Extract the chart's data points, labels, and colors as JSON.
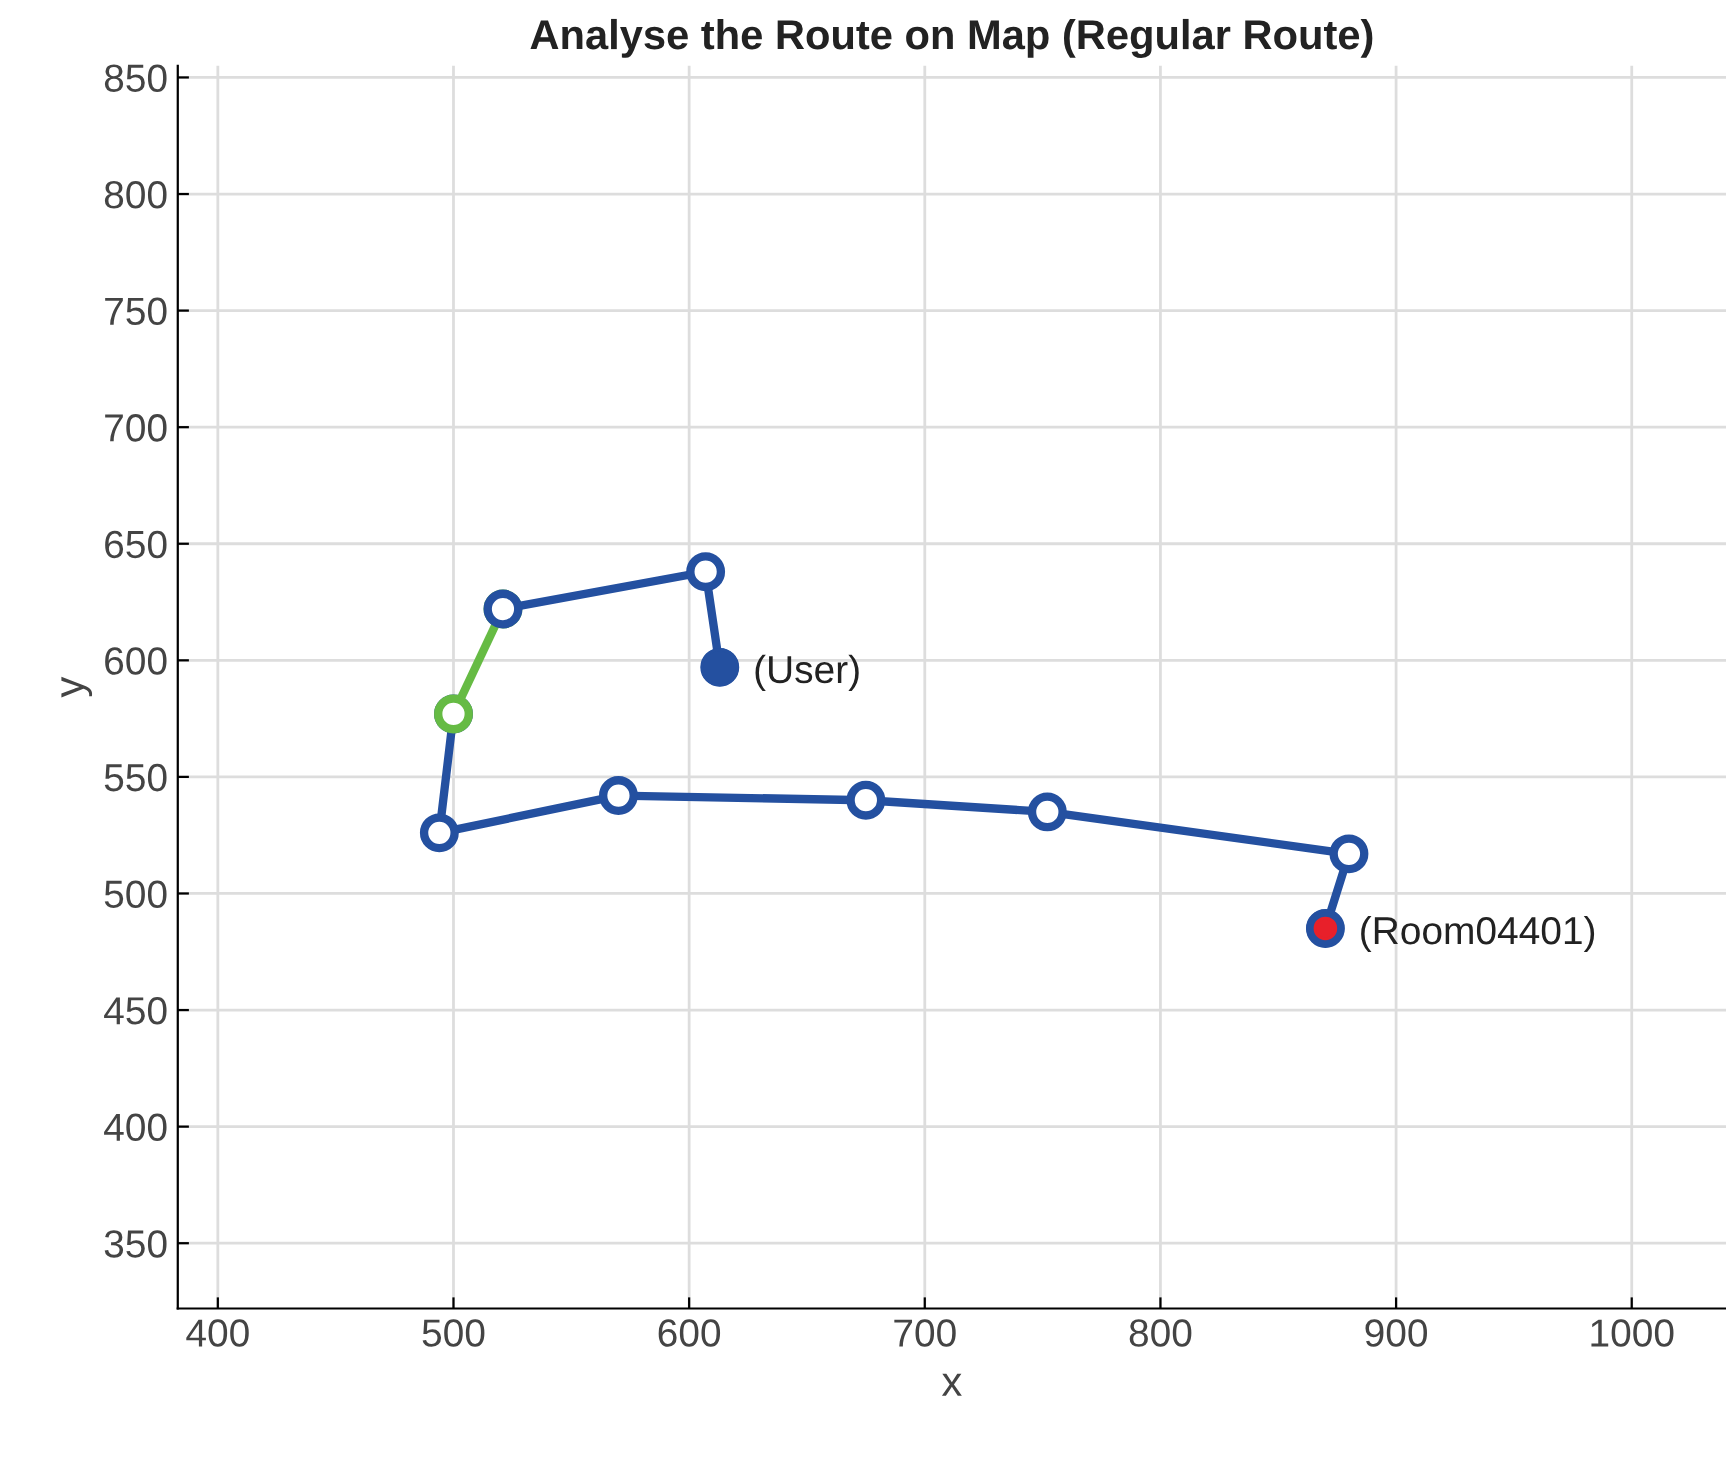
{
  "chart_data": {
    "type": "line",
    "title": "Analyse the Route on Map (Regular Route)",
    "xlabel": "x",
    "ylabel": "y",
    "xlim": [
      383,
      1040
    ],
    "ylim": [
      322,
      855
    ],
    "xticks": [
      400,
      500,
      600,
      700,
      800,
      900,
      1000
    ],
    "yticks": [
      350,
      400,
      450,
      500,
      550,
      600,
      650,
      700,
      750,
      800,
      850
    ],
    "grid": true,
    "marker": "circle",
    "line_style": "solid",
    "series": [
      {
        "color": "#2450a0",
        "x": [
          500,
          494,
          570,
          675,
          752,
          880,
          870
        ],
        "values": [
          577,
          526,
          542,
          540,
          535,
          517,
          485
        ]
      },
      {
        "color": "#66bb44",
        "x": [
          521,
          500
        ],
        "values": [
          622,
          577
        ]
      },
      {
        "color": "#2450a0",
        "x": [
          613,
          607,
          521
        ],
        "values": [
          597,
          638,
          622
        ]
      },
      {
        "type": "bubble",
        "color": "#2450a0",
        "x": [
          613,
          870
        ],
        "values": [
          597,
          485
        ],
        "sizes": [
          1,
          1
        ]
      },
      {
        "type": "bubble",
        "color": "#e8202a",
        "x": [
          870
        ],
        "values": [
          485
        ],
        "sizes": [
          0.35
        ]
      }
    ],
    "annotations": [
      {
        "text": "(User)",
        "x": 613,
        "y": 597
      },
      {
        "text": "(Room04401)",
        "x": 870,
        "y": 485
      }
    ]
  }
}
